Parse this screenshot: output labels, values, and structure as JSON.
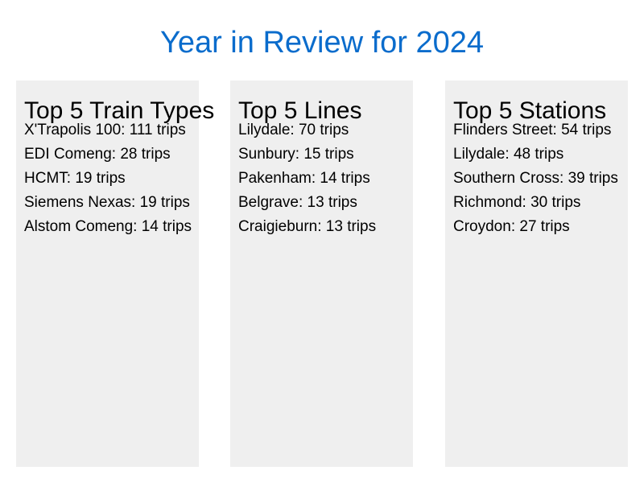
{
  "title": "Year in Review for 2024",
  "panels": [
    {
      "heading": "Top 5 Train Types",
      "items": [
        "X'Trapolis 100: 111 trips",
        "EDI Comeng: 28 trips",
        "HCMT: 19 trips",
        "Siemens Nexas: 19 trips",
        "Alstom Comeng: 14 trips"
      ]
    },
    {
      "heading": "Top 5 Lines",
      "items": [
        "Lilydale: 70 trips",
        "Sunbury: 15 trips",
        "Pakenham: 14 trips",
        "Belgrave: 13 trips",
        "Craigieburn: 13 trips"
      ]
    },
    {
      "heading": "Top 5 Stations",
      "items": [
        "Flinders Street: 54 trips",
        "Lilydale: 48 trips",
        "Southern Cross: 39 trips",
        "Richmond: 30 trips",
        "Croydon: 27 trips"
      ]
    }
  ],
  "colors": {
    "title": "#0a6ccc",
    "panel_background": "#efefef",
    "page_background": "#ffffff"
  }
}
